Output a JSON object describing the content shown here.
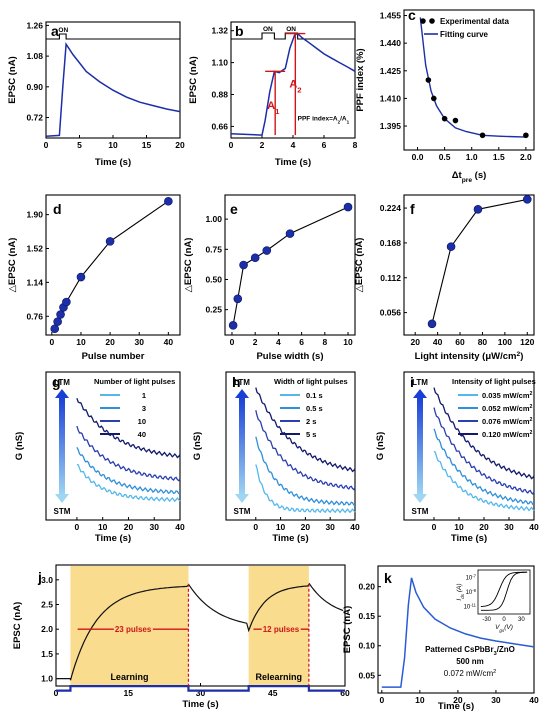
{
  "colors": {
    "curve": "#1c2ea8",
    "marker": "#1c2ea8",
    "annot_red": "#d0141a",
    "highlight": "#f9dc8e",
    "g1": "#54b8ec",
    "g2": "#2f8fd8",
    "g3": "#2a3fb0",
    "g4": "#121a6b",
    "j_curve": "#111111",
    "j_pulse": "#1c2ea8",
    "k_curve": "#2a5bd6"
  },
  "chart_data": [
    {
      "panel": "a",
      "type": "line",
      "xlabel": "Time (s)",
      "ylabel": "EPSC (nA)",
      "xlim": [
        0,
        20
      ],
      "ylim": [
        0.6,
        1.28
      ],
      "xticks": [
        0,
        5,
        10,
        15,
        20
      ],
      "xtick_labels": [
        "0",
        "5",
        "10",
        "15",
        "20"
      ],
      "yticks": [
        0.72,
        0.9,
        1.08,
        1.26
      ],
      "ytick_labels": [
        "0.72",
        "0.90",
        "1.08",
        "1.26"
      ],
      "annotations": {
        "on": "ON"
      },
      "pulse": {
        "x0": 2.0,
        "x1": 3.0
      },
      "series": [
        {
          "x": [
            0,
            2,
            2.5,
            3,
            3.5,
            4,
            5,
            6,
            8,
            10,
            12,
            14,
            16,
            18,
            20
          ],
          "y": [
            0.61,
            0.615,
            0.9,
            1.15,
            1.12,
            1.09,
            1.04,
            0.99,
            0.93,
            0.88,
            0.84,
            0.81,
            0.79,
            0.77,
            0.755
          ]
        }
      ]
    },
    {
      "panel": "b",
      "type": "line",
      "xlabel": "Time (s)",
      "ylabel": "EPSC (nA)",
      "xlim": [
        0,
        8
      ],
      "ylim": [
        0.58,
        1.38
      ],
      "xticks": [
        0,
        2,
        4,
        6,
        8
      ],
      "xtick_labels": [
        "0",
        "2",
        "4",
        "6",
        "8"
      ],
      "yticks": [
        0.66,
        0.88,
        1.1,
        1.32
      ],
      "ytick_labels": [
        "0.66",
        "0.88",
        "1.10",
        "1.32"
      ],
      "annotations": {
        "on1": "ON",
        "on2": "ON",
        "a1": "A",
        "a1_sub": "1",
        "a2": "A",
        "a2_sub": "2",
        "ppf": "PPF index=A",
        "ppf_mid": "/A",
        "ppf_sub2": "2",
        "ppf_sub1": "1"
      },
      "pulses": [
        {
          "x0": 2.0,
          "x1": 2.8
        },
        {
          "x0": 3.5,
          "x1": 4.3
        }
      ],
      "series": [
        {
          "x": [
            0,
            2,
            2.2,
            2.5,
            2.8,
            3.1,
            3.5,
            3.8,
            4.1,
            4.3,
            4.6,
            5,
            5.5,
            6,
            6.5,
            7,
            7.5,
            8
          ],
          "y": [
            0.61,
            0.6,
            0.7,
            0.9,
            1.04,
            1.03,
            1.06,
            1.2,
            1.29,
            1.3,
            1.27,
            1.24,
            1.2,
            1.16,
            1.13,
            1.1,
            1.07,
            1.04
          ]
        }
      ]
    },
    {
      "panel": "c",
      "type": "scatter",
      "xlabel": "Δt",
      "xlabel_sub": "pre",
      "xlabel_unit": " (s)",
      "ylabel": "PPF index (%)",
      "xlim": [
        -0.25,
        2.15
      ],
      "ylim": [
        1.382,
        1.458
      ],
      "xticks": [
        0,
        0.5,
        1.0,
        1.5,
        2.0
      ],
      "xtick_labels": [
        "0.0",
        "0.5",
        "1.0",
        "1.5",
        "2.0"
      ],
      "yticks": [
        1.395,
        1.41,
        1.425,
        1.44,
        1.455
      ],
      "ytick_labels": [
        "1.395",
        "1.410",
        "1.425",
        "1.440",
        "1.455"
      ],
      "legend": {
        "points": "Experimental data",
        "fit": "Fitting curve"
      },
      "points": {
        "x": [
          0.1,
          0.2,
          0.3,
          0.5,
          0.7,
          1.2,
          2.0
        ],
        "y": [
          1.452,
          1.42,
          1.41,
          1.399,
          1.398,
          1.39,
          1.39
        ]
      },
      "fit": {
        "x": [
          0.05,
          0.15,
          0.25,
          0.35,
          0.5,
          0.7,
          0.9,
          1.2,
          1.5,
          2.0
        ],
        "y": [
          1.454,
          1.428,
          1.414,
          1.406,
          1.399,
          1.394,
          1.392,
          1.39,
          1.3895,
          1.389
        ]
      }
    },
    {
      "panel": "d",
      "type": "scatter-line",
      "xlabel": "Pulse number",
      "ylabel": "△EPSC (nA)",
      "xlim": [
        -2,
        44
      ],
      "ylim": [
        0.55,
        2.12
      ],
      "xticks": [
        0,
        10,
        20,
        30,
        40
      ],
      "xtick_labels": [
        "0",
        "10",
        "20",
        "30",
        "40"
      ],
      "yticks": [
        0.76,
        1.14,
        1.52,
        1.9
      ],
      "ytick_labels": [
        "0.76",
        "1.14",
        "1.52",
        "1.90"
      ],
      "series": [
        {
          "x": [
            1,
            2,
            3,
            4,
            5,
            10,
            20,
            40
          ],
          "y": [
            0.62,
            0.7,
            0.78,
            0.86,
            0.92,
            1.2,
            1.6,
            2.05
          ]
        }
      ]
    },
    {
      "panel": "e",
      "type": "scatter-line",
      "xlabel": "Pulse width (s)",
      "ylabel": "△EPSC (nA)",
      "xlim": [
        -0.6,
        10.6
      ],
      "ylim": [
        0.04,
        1.2
      ],
      "xticks": [
        0,
        2,
        4,
        6,
        8,
        10
      ],
      "xtick_labels": [
        "0",
        "2",
        "4",
        "6",
        "8",
        "10"
      ],
      "yticks": [
        0.25,
        0.5,
        0.75,
        1.0
      ],
      "ytick_labels": [
        "0.25",
        "0.50",
        "0.75",
        "1.00"
      ],
      "series": [
        {
          "x": [
            0.1,
            0.5,
            1,
            2,
            3,
            5,
            10
          ],
          "y": [
            0.12,
            0.34,
            0.62,
            0.68,
            0.74,
            0.88,
            1.1
          ]
        }
      ]
    },
    {
      "panel": "f",
      "type": "scatter-line",
      "xlabel": "Light intensity (μW/cm",
      "xlabel_sup": "2",
      "xlabel_end": ")",
      "ylabel": "△EPSC (nA)",
      "xlim": [
        10,
        126
      ],
      "ylim": [
        0.02,
        0.245
      ],
      "xticks": [
        20,
        40,
        60,
        80,
        100,
        120
      ],
      "xtick_labels": [
        "20",
        "40",
        "60",
        "80",
        "100",
        "120"
      ],
      "yticks": [
        0.056,
        0.112,
        0.168,
        0.224
      ],
      "ytick_labels": [
        "0.056",
        "0.112",
        "0.168",
        "0.224"
      ],
      "series": [
        {
          "x": [
            35,
            52,
            76,
            120
          ],
          "y": [
            0.038,
            0.162,
            0.222,
            0.238
          ]
        }
      ]
    },
    {
      "panel": "g",
      "type": "line",
      "xlabel": "Time (s)",
      "ylabel": "G (nS)",
      "xlim": [
        -12,
        40
      ],
      "xticks": [
        0,
        10,
        20,
        30,
        40
      ],
      "xtick_labels": [
        "0",
        "10",
        "20",
        "30",
        "40"
      ],
      "legend_title": "Number of light pulses",
      "arrow": {
        "top": "LTM",
        "bottom": "STM"
      },
      "series": [
        {
          "name": "1",
          "peak": 0.3,
          "tail": 0.03,
          "tau": 9
        },
        {
          "name": "3",
          "peak": 0.42,
          "tail": 0.08,
          "tau": 11
        },
        {
          "name": "10",
          "peak": 0.58,
          "tail": 0.17,
          "tau": 13
        },
        {
          "name": "40",
          "peak": 0.8,
          "tail": 0.33,
          "tau": 15
        }
      ]
    },
    {
      "panel": "h",
      "type": "line",
      "xlabel": "Time (s)",
      "ylabel": "G (nS)",
      "xlim": [
        -12,
        40
      ],
      "xticks": [
        0,
        10,
        20,
        30,
        40
      ],
      "xtick_labels": [
        "0",
        "10",
        "20",
        "30",
        "40"
      ],
      "legend_title": "Width of light pulses",
      "arrow": {
        "top": "LTM",
        "bottom": "STM"
      },
      "series": [
        {
          "name": "0.1 s",
          "peak": 0.3,
          "tail": -0.05,
          "tau": 4
        },
        {
          "name": "0.5 s",
          "peak": 0.5,
          "tail": 0.0,
          "tau": 8
        },
        {
          "name": "2 s",
          "peak": 0.7,
          "tail": 0.1,
          "tau": 12
        },
        {
          "name": "5 s",
          "peak": 0.88,
          "tail": 0.2,
          "tau": 16
        }
      ]
    },
    {
      "panel": "i",
      "type": "line",
      "xlabel": "Time (s)",
      "ylabel": "G (nS)",
      "xlim": [
        -12,
        40
      ],
      "xticks": [
        0,
        10,
        20,
        30,
        40
      ],
      "xtick_labels": [
        "0",
        "10",
        "20",
        "30",
        "40"
      ],
      "legend_title": "Intensity of light pulses",
      "arrow": {
        "top": "LTM",
        "bottom": "STM"
      },
      "legend_unit": "mW/cm",
      "legend_sup": "2",
      "series": [
        {
          "name": "0.035",
          "peak": 0.4,
          "tail": -0.05,
          "tau": 11
        },
        {
          "name": "0.052",
          "peak": 0.56,
          "tail": -0.02,
          "tau": 13
        },
        {
          "name": "0.076",
          "peak": 0.72,
          "tail": 0.04,
          "tau": 15
        },
        {
          "name": "0.120",
          "peak": 0.88,
          "tail": 0.13,
          "tau": 17
        }
      ]
    },
    {
      "panel": "j",
      "type": "line",
      "xlabel": "Time (s)",
      "ylabel": "EPSC (nA)",
      "xlim": [
        0,
        60
      ],
      "ylim": [
        0.85,
        3.3
      ],
      "xticks": [
        0,
        15,
        30,
        45,
        60
      ],
      "xtick_labels": [
        "0",
        "15",
        "30",
        "45",
        "60"
      ],
      "yticks": [
        1.0,
        1.5,
        2.0,
        2.5,
        3.0
      ],
      "ytick_labels": [
        "1.0",
        "1.5",
        "2.0",
        "2.5",
        "3.0"
      ],
      "phases": [
        {
          "label": "Learning",
          "x0": 3,
          "x1": 27.5
        },
        {
          "label": "Relearning",
          "x0": 40,
          "x1": 52.5
        }
      ],
      "annotations": {
        "pulses1": "23 pulses",
        "pulses2": "12 pulses"
      },
      "base": 1.0,
      "pulse_level": 1.09
    },
    {
      "panel": "k",
      "type": "line",
      "xlabel": "Time (s)",
      "ylabel": "EPSC (nA)",
      "xlim": [
        -1,
        40
      ],
      "ylim": [
        0.02,
        0.235
      ],
      "xticks": [
        0,
        10,
        20,
        30,
        40
      ],
      "xtick_labels": [
        "0",
        "10",
        "20",
        "30",
        "40"
      ],
      "yticks": [
        0.05,
        0.1,
        0.15,
        0.2
      ],
      "ytick_labels": [
        "0.05",
        "0.10",
        "0.15",
        "0.20"
      ],
      "annotations": {
        "device": "Patterned CsPbBr",
        "device_sub": "3",
        "device_end": "/ZnO",
        "thickness": "500 nm",
        "intensity": "0.072 mW/cm",
        "intensity_sup": "2"
      },
      "series": [
        {
          "x": [
            0,
            5,
            6,
            7,
            7.8,
            9,
            11,
            14,
            18,
            22,
            26,
            30,
            34,
            40
          ],
          "y": [
            0.03,
            0.03,
            0.08,
            0.17,
            0.215,
            0.19,
            0.165,
            0.145,
            0.13,
            0.12,
            0.113,
            0.108,
            0.104,
            0.098
          ]
        }
      ],
      "inset": {
        "xlabel": "V",
        "xlabel_sub": "gs",
        "xlabel_unit": "(V)",
        "ylabel": "I",
        "ylabel_sub": "ds",
        "ylabel_unit": " (A)",
        "xticks": [
          -30,
          0,
          30
        ],
        "xtick_labels": [
          "-30",
          "0",
          "30"
        ],
        "yticks": [
          -7,
          -9,
          -11
        ],
        "ytick_base": "10",
        "ytick_exps": [
          "-7",
          "-9",
          "-11"
        ]
      }
    }
  ]
}
